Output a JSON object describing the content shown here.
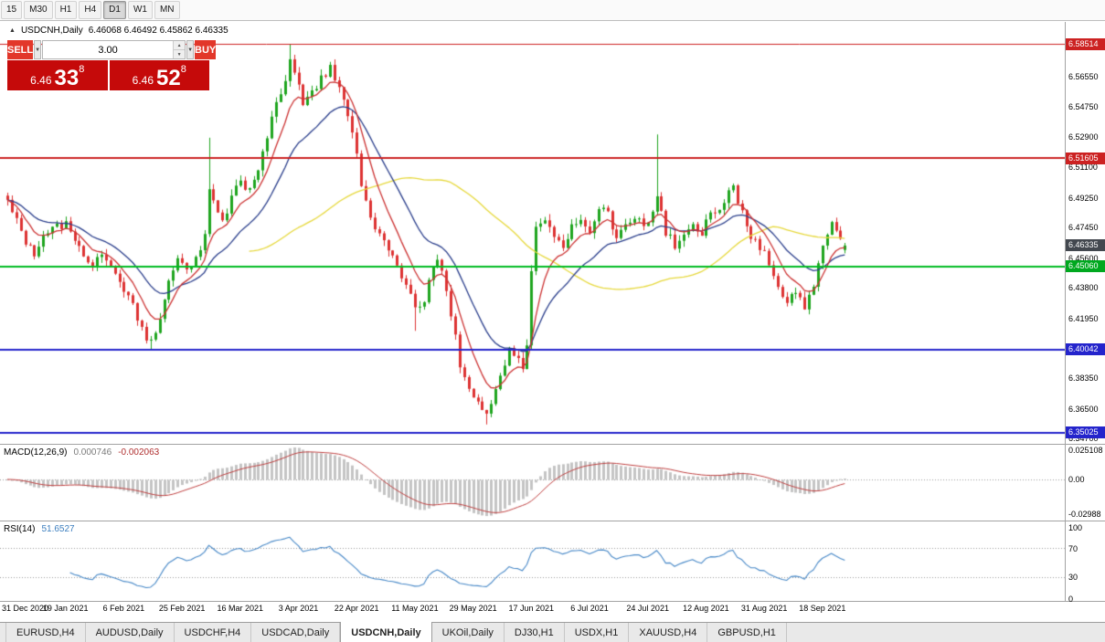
{
  "toolbar": {
    "timeframes": [
      "15",
      "M30",
      "H1",
      "H4",
      "D1",
      "W1",
      "MN"
    ],
    "active": "D1"
  },
  "chart": {
    "collapse_arrow": "▲",
    "symbol": "USDCNH,Daily",
    "ohlc": "6.46068 6.46492 6.45862 6.46335"
  },
  "trade_panel": {
    "sell_label": "SELL",
    "buy_label": "BUY",
    "volume": "3.00",
    "caret": "▼",
    "stepper_up": "▲",
    "stepper_down": "▼",
    "sell_price": {
      "prefix": "6.46",
      "big": "33",
      "sup": "8"
    },
    "buy_price": {
      "prefix": "6.46",
      "big": "52",
      "sup": "8"
    }
  },
  "price_axis": {
    "ticks": [
      "6.56550",
      "6.54750",
      "6.52900",
      "6.51100",
      "6.49250",
      "6.47450",
      "6.45600",
      "6.43800",
      "6.41950",
      "6.38350",
      "6.36500",
      "6.34700"
    ],
    "badges": [
      {
        "text": "6.58514",
        "bg": "#cc2222"
      },
      {
        "text": "6.51605",
        "bg": "#cc2222"
      },
      {
        "text": "6.46335",
        "bg": "#43484f"
      },
      {
        "text": "6.45060",
        "bg": "#00a81f"
      },
      {
        "text": "6.40042",
        "bg": "#2424cc"
      },
      {
        "text": "6.35025",
        "bg": "#2424cc"
      }
    ]
  },
  "macd": {
    "name": "MACD(12,26,9)",
    "main_value": "0.000746",
    "signal_value": "-0.002063",
    "axis": [
      "0.025108",
      "0.00",
      "-0.02988"
    ]
  },
  "rsi": {
    "name": "RSI(14)",
    "value": "51.6527",
    "axis": [
      "100",
      "70",
      "30",
      "0"
    ]
  },
  "tabs": {
    "items": [
      "EURUSD,H4",
      "AUDUSD,Daily",
      "USDCHF,H4",
      "USDCAD,Daily",
      "USDCNH,Daily",
      "UKOil,Daily",
      "DJ30,H1",
      "USDX,H1",
      "XAUUSD,H4",
      "GBPUSD,H1"
    ],
    "active": "USDCNH,Daily"
  },
  "colors": {
    "up": "#1fa51f",
    "down": "#dd3333",
    "ma_fast": "#cc3333",
    "ma_mid": "#2b3f8c",
    "ma_slow": "#e6d83c",
    "macd_hist": "#c4c4c4",
    "macd_signal": "#bf4040",
    "rsi_line": "#4788c7",
    "dotted": "#9a9a9a"
  },
  "chart_data": {
    "type": "candlestick",
    "symbol": "USDCNH",
    "timeframe": "Daily",
    "current_ohlc": {
      "open": 6.46068,
      "high": 6.46492,
      "low": 6.45862,
      "close": 6.46335
    },
    "price_range": [
      6.3435,
      6.5985
    ],
    "num_candles": 188,
    "date_step": 13,
    "x_labels": [
      "31 Dec 2020",
      "19 Jan 2021",
      "6 Feb 2021",
      "25 Feb 2021",
      "16 Mar 2021",
      "3 Apr 2021",
      "22 Apr 2021",
      "11 May 2021",
      "29 May 2021",
      "17 Jun 2021",
      "6 Jul 2021",
      "24 Jul 2021",
      "12 Aug 2021",
      "31 Aug 2021",
      "18 Sep 2021"
    ],
    "h_lines": [
      {
        "price": 6.58514,
        "color": "#cc2222",
        "width": 1
      },
      {
        "price": 6.51605,
        "color": "#cc2222",
        "width": 2
      },
      {
        "price": 6.4506,
        "color": "#00bb22",
        "width": 2
      },
      {
        "price": 6.40042,
        "color": "#2424cc",
        "width": 2
      },
      {
        "price": 6.35025,
        "color": "#2424cc",
        "width": 2
      }
    ],
    "moving_averages": [
      {
        "type": "sma",
        "period": 55,
        "color": "#e6d83c"
      },
      {
        "type": "ema",
        "period": 20,
        "color": "#2b3f8c"
      },
      {
        "type": "ema",
        "period": 8,
        "color": "#cc3333"
      }
    ],
    "macd_range": [
      -0.0299,
      0.0251
    ],
    "rsi_levels": [
      70,
      30
    ],
    "close_anchors": [
      [
        0,
        6.492
      ],
      [
        2,
        6.478
      ],
      [
        4,
        6.465
      ],
      [
        6,
        6.458
      ],
      [
        8,
        6.468
      ],
      [
        10,
        6.474
      ],
      [
        13,
        6.477
      ],
      [
        15,
        6.468
      ],
      [
        17,
        6.455
      ],
      [
        19,
        6.45
      ],
      [
        21,
        6.46
      ],
      [
        23,
        6.452
      ],
      [
        25,
        6.44
      ],
      [
        27,
        6.432
      ],
      [
        29,
        6.42
      ],
      [
        31,
        6.408
      ],
      [
        32,
        6.404
      ],
      [
        33,
        6.41
      ],
      [
        34,
        6.42
      ],
      [
        36,
        6.443
      ],
      [
        38,
        6.456
      ],
      [
        40,
        6.448
      ],
      [
        42,
        6.455
      ],
      [
        44,
        6.47
      ],
      [
        45,
        6.497
      ],
      [
        46,
        6.488
      ],
      [
        48,
        6.478
      ],
      [
        50,
        6.492
      ],
      [
        52,
        6.503
      ],
      [
        54,
        6.496
      ],
      [
        56,
        6.508
      ],
      [
        58,
        6.53
      ],
      [
        60,
        6.548
      ],
      [
        62,
        6.565
      ],
      [
        63,
        6.576
      ],
      [
        64,
        6.568
      ],
      [
        66,
        6.55
      ],
      [
        68,
        6.556
      ],
      [
        70,
        6.565
      ],
      [
        72,
        6.571
      ],
      [
        74,
        6.56
      ],
      [
        76,
        6.54
      ],
      [
        78,
        6.52
      ],
      [
        79,
        6.5
      ],
      [
        81,
        6.478
      ],
      [
        83,
        6.47
      ],
      [
        85,
        6.458
      ],
      [
        87,
        6.452
      ],
      [
        89,
        6.44
      ],
      [
        91,
        6.424
      ],
      [
        93,
        6.43
      ],
      [
        95,
        6.45
      ],
      [
        96,
        6.455
      ],
      [
        98,
        6.436
      ],
      [
        100,
        6.41
      ],
      [
        101,
        6.392
      ],
      [
        103,
        6.378
      ],
      [
        105,
        6.368
      ],
      [
        107,
        6.361
      ],
      [
        109,
        6.374
      ],
      [
        111,
        6.392
      ],
      [
        112,
        6.4
      ],
      [
        113,
        6.396
      ],
      [
        115,
        6.39
      ],
      [
        116,
        6.403
      ],
      [
        117,
        6.45
      ],
      [
        118,
        6.472
      ],
      [
        120,
        6.48
      ],
      [
        122,
        6.47
      ],
      [
        124,
        6.462
      ],
      [
        126,
        6.476
      ],
      [
        128,
        6.48
      ],
      [
        130,
        6.47
      ],
      [
        132,
        6.486
      ],
      [
        134,
        6.482
      ],
      [
        136,
        6.468
      ],
      [
        138,
        6.475
      ],
      [
        140,
        6.482
      ],
      [
        142,
        6.476
      ],
      [
        144,
        6.482
      ],
      [
        145,
        6.492
      ],
      [
        147,
        6.472
      ],
      [
        149,
        6.464
      ],
      [
        151,
        6.472
      ],
      [
        153,
        6.476
      ],
      [
        155,
        6.472
      ],
      [
        157,
        6.482
      ],
      [
        159,
        6.486
      ],
      [
        161,
        6.494
      ],
      [
        162,
        6.499
      ],
      [
        164,
        6.482
      ],
      [
        166,
        6.47
      ],
      [
        168,
        6.463
      ],
      [
        170,
        6.452
      ],
      [
        172,
        6.44
      ],
      [
        174,
        6.428
      ],
      [
        176,
        6.437
      ],
      [
        178,
        6.424
      ],
      [
        180,
        6.44
      ],
      [
        182,
        6.463
      ],
      [
        184,
        6.477
      ],
      [
        186,
        6.466
      ],
      [
        187,
        6.4634
      ]
    ],
    "extreme_overrides": [
      {
        "i": 32,
        "l": 6.4008
      },
      {
        "i": 45,
        "h": 6.5285
      },
      {
        "i": 63,
        "h": 6.5851
      },
      {
        "i": 91,
        "l": 6.4118
      },
      {
        "i": 107,
        "l": 6.3552
      },
      {
        "i": 145,
        "h": 6.5305
      },
      {
        "i": 187,
        "o": 6.46068,
        "h": 6.46492,
        "l": 6.45862,
        "c": 6.46335
      }
    ]
  }
}
